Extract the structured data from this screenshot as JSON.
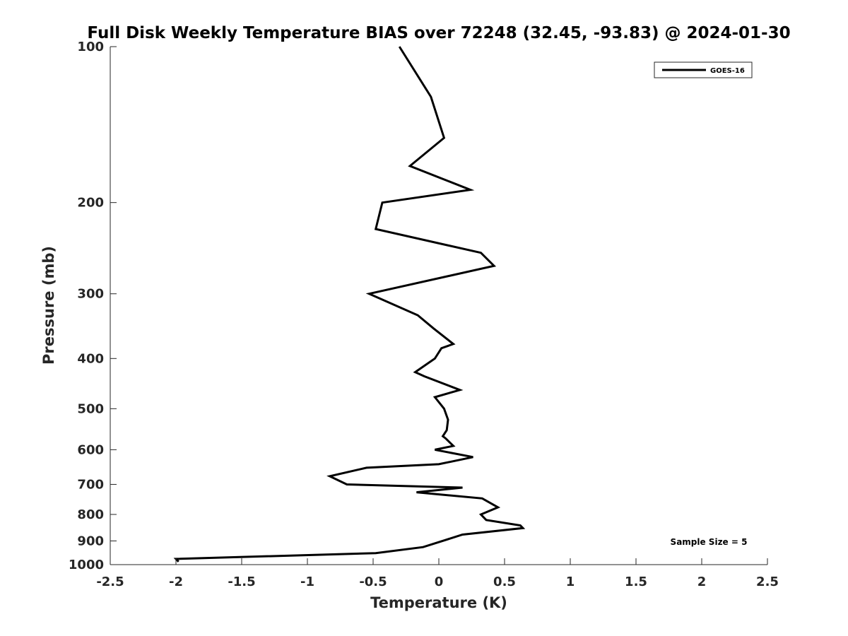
{
  "chart_data": {
    "type": "line",
    "title": "Full Disk Weekly Temperature BIAS over 72248 (32.45, -93.83) @ 2024-01-30",
    "xlabel": "Temperature (K)",
    "ylabel": "Pressure (mb)",
    "xlim": [
      -2.5,
      2.5
    ],
    "ylim": [
      100,
      1000
    ],
    "y_scale": "log",
    "y_reversed": true,
    "x_ticks": [
      -2.5,
      -2,
      -1.5,
      -1,
      -0.5,
      0,
      0.5,
      1,
      1.5,
      2,
      2.5
    ],
    "x_tick_labels": [
      "-2.5",
      "-2",
      "-1.5",
      "-1",
      "-0.5",
      "0",
      "0.5",
      "1",
      "1.5",
      "2",
      "2.5"
    ],
    "y_ticks": [
      100,
      200,
      300,
      400,
      500,
      600,
      700,
      800,
      900,
      1000
    ],
    "y_tick_labels": [
      "100",
      "200",
      "300",
      "400",
      "500",
      "600",
      "700",
      "800",
      "900",
      "1000"
    ],
    "grid": false,
    "legend_position": "top-right",
    "series": [
      {
        "name": "GOES-16",
        "color": "#000000",
        "points": [
          {
            "x": -0.3,
            "y": 100
          },
          {
            "x": -0.06,
            "y": 125
          },
          {
            "x": 0.04,
            "y": 150
          },
          {
            "x": -0.22,
            "y": 170
          },
          {
            "x": 0.24,
            "y": 189
          },
          {
            "x": -0.43,
            "y": 200
          },
          {
            "x": -0.48,
            "y": 225
          },
          {
            "x": 0.32,
            "y": 250
          },
          {
            "x": 0.42,
            "y": 265
          },
          {
            "x": -0.53,
            "y": 300
          },
          {
            "x": -0.16,
            "y": 330
          },
          {
            "x": -0.04,
            "y": 350
          },
          {
            "x": 0.11,
            "y": 375
          },
          {
            "x": 0.02,
            "y": 382
          },
          {
            "x": -0.03,
            "y": 400
          },
          {
            "x": -0.18,
            "y": 425
          },
          {
            "x": -0.11,
            "y": 433
          },
          {
            "x": 0.16,
            "y": 460
          },
          {
            "x": -0.03,
            "y": 475
          },
          {
            "x": 0.04,
            "y": 500
          },
          {
            "x": 0.07,
            "y": 525
          },
          {
            "x": 0.06,
            "y": 550
          },
          {
            "x": 0.03,
            "y": 565
          },
          {
            "x": 0.05,
            "y": 570
          },
          {
            "x": 0.11,
            "y": 590
          },
          {
            "x": -0.03,
            "y": 600
          },
          {
            "x": 0.26,
            "y": 620
          },
          {
            "x": 0.0,
            "y": 640
          },
          {
            "x": -0.55,
            "y": 650
          },
          {
            "x": -0.83,
            "y": 675
          },
          {
            "x": -0.7,
            "y": 700
          },
          {
            "x": 0.18,
            "y": 710
          },
          {
            "x": -0.17,
            "y": 725
          },
          {
            "x": 0.33,
            "y": 745
          },
          {
            "x": 0.45,
            "y": 775
          },
          {
            "x": 0.32,
            "y": 800
          },
          {
            "x": 0.36,
            "y": 820
          },
          {
            "x": 0.62,
            "y": 840
          },
          {
            "x": 0.64,
            "y": 850
          },
          {
            "x": 0.18,
            "y": 875
          },
          {
            "x": -0.12,
            "y": 925
          },
          {
            "x": -0.48,
            "y": 950
          },
          {
            "x": -2.0,
            "y": 975
          },
          {
            "x": -1.98,
            "y": 987
          }
        ]
      }
    ],
    "annotations": [
      {
        "text": "Sample Size = 5",
        "x": 1.75,
        "y": 900
      }
    ]
  }
}
